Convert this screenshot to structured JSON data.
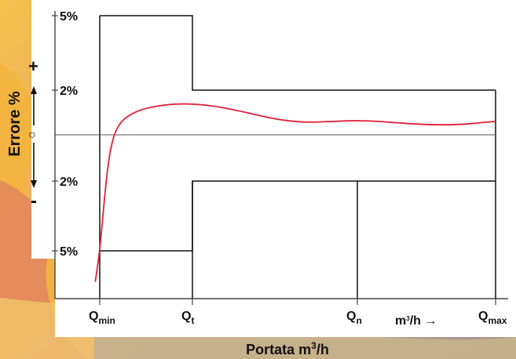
{
  "chart_data": {
    "type": "line",
    "title": "",
    "xlabel": {
      "text": "Portata m",
      "sup": "3",
      "suffix": "/h"
    },
    "ylabel": "Errore %",
    "y_sign_plus": "+",
    "y_sign_minus": "-",
    "y_zero_marker": "○",
    "unit_hint": {
      "text": "m",
      "sup": "3",
      "suffix": "/h →"
    },
    "y_ticks": [
      {
        "value": 5,
        "label": "5%"
      },
      {
        "value": 2,
        "label": "2%"
      },
      {
        "value": -2,
        "label": "2%"
      },
      {
        "value": -5,
        "label": "5%"
      }
    ],
    "x_ticks": [
      {
        "value": 0,
        "main": "Q",
        "sub": "min"
      },
      {
        "value": 1,
        "main": "Q",
        "sub": "t"
      },
      {
        "value": 3,
        "main": "Q",
        "sub": "n"
      },
      {
        "value": 4.5,
        "main": "Q",
        "sub": "max"
      }
    ],
    "xlim": [
      -0.5,
      4.5
    ],
    "ylim": [
      -7,
      5
    ],
    "limits": {
      "upper": [
        {
          "x": 0,
          "y": 5
        },
        {
          "x": 1,
          "y": 5
        },
        {
          "x": 1,
          "y": 2
        },
        {
          "x": 4.5,
          "y": 2
        }
      ],
      "lower": [
        {
          "x": 0,
          "y": -5
        },
        {
          "x": 1,
          "y": -5
        },
        {
          "x": 1,
          "y": -2
        },
        {
          "x": 4.5,
          "y": -2
        }
      ]
    },
    "series": [
      {
        "color": "#e0203a",
        "points": [
          {
            "x": -0.05,
            "y": -6.3
          },
          {
            "x": 0.0,
            "y": -5.0
          },
          {
            "x": 0.04,
            "y": -3.2
          },
          {
            "x": 0.08,
            "y": -1.6
          },
          {
            "x": 0.12,
            "y": -0.5
          },
          {
            "x": 0.18,
            "y": 0.3
          },
          {
            "x": 0.28,
            "y": 0.8
          },
          {
            "x": 0.45,
            "y": 1.15
          },
          {
            "x": 0.7,
            "y": 1.35
          },
          {
            "x": 0.95,
            "y": 1.4
          },
          {
            "x": 1.25,
            "y": 1.3
          },
          {
            "x": 1.6,
            "y": 1.05
          },
          {
            "x": 2.0,
            "y": 0.7
          },
          {
            "x": 2.35,
            "y": 0.55
          },
          {
            "x": 2.7,
            "y": 0.6
          },
          {
            "x": 3.05,
            "y": 0.65
          },
          {
            "x": 3.4,
            "y": 0.55
          },
          {
            "x": 3.75,
            "y": 0.45
          },
          {
            "x": 4.1,
            "y": 0.45
          },
          {
            "x": 4.35,
            "y": 0.55
          },
          {
            "x": 4.5,
            "y": 0.6
          }
        ]
      }
    ],
    "colors": {
      "axis": "#444444",
      "limits": "#111111",
      "curve": "#e0203a"
    }
  }
}
